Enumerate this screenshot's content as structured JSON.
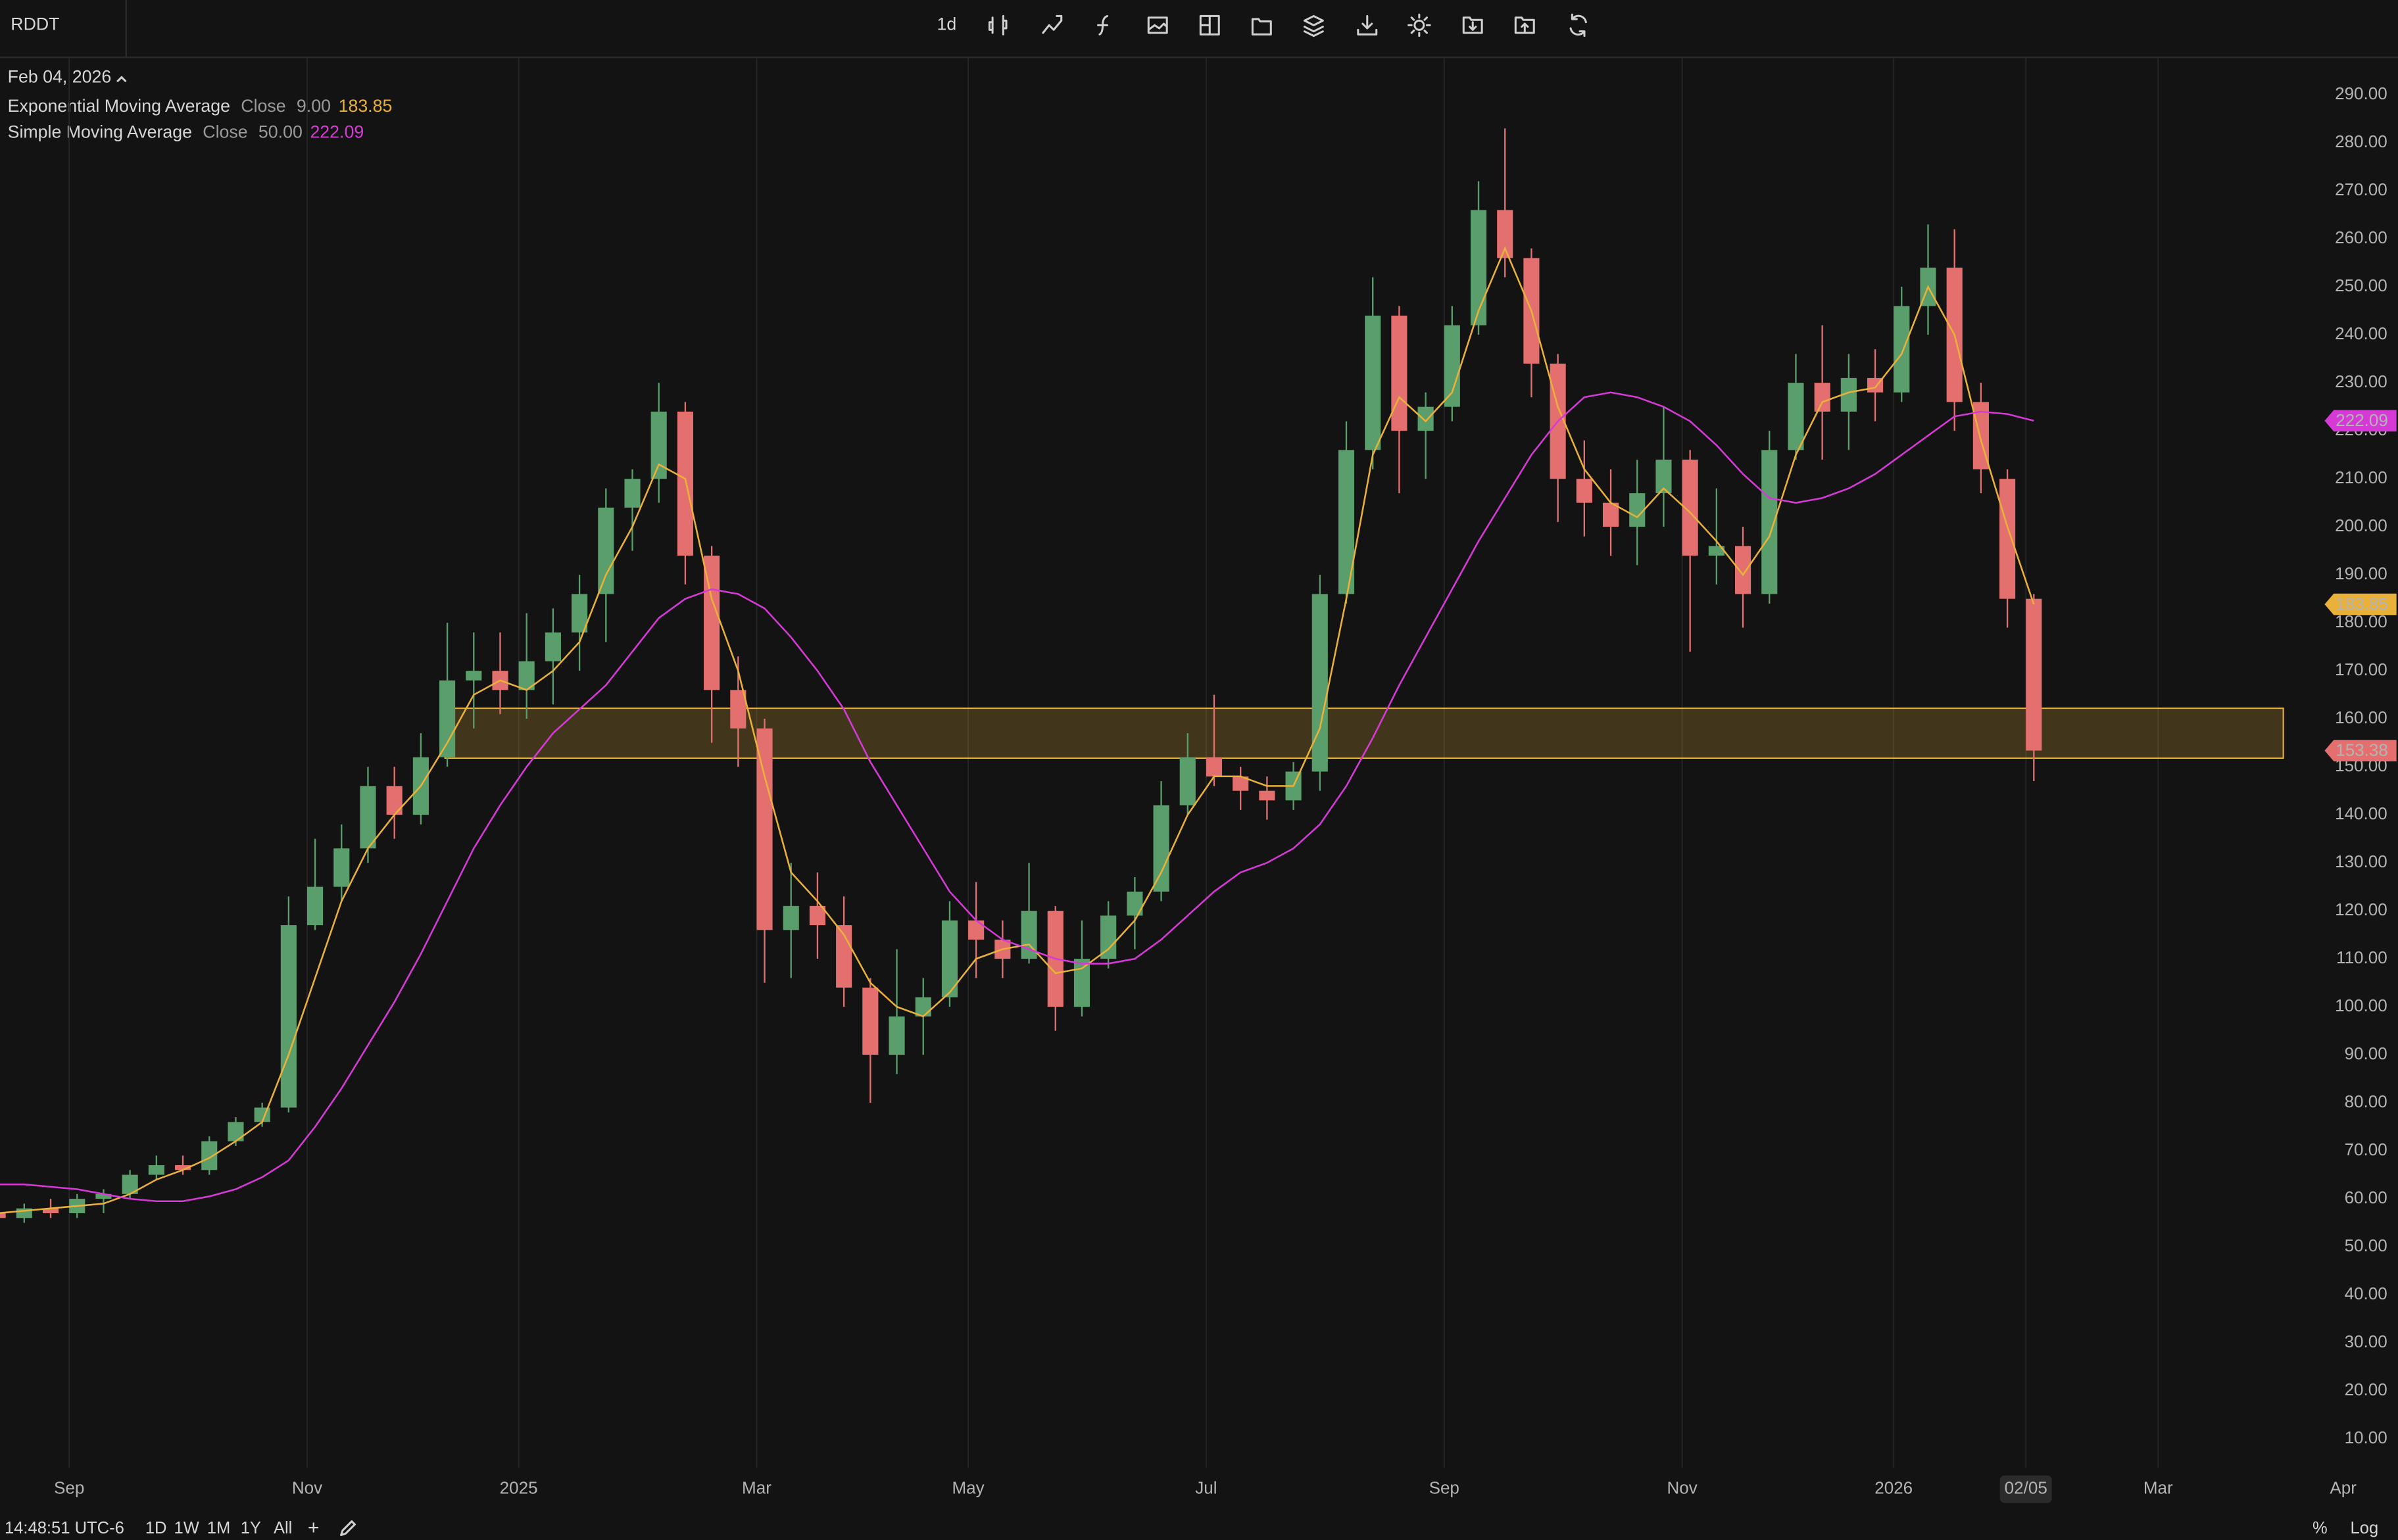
{
  "header": {
    "symbol": "RDDT",
    "interval": "1d",
    "date": "Feb 04, 2026"
  },
  "footer": {
    "time": "14:48:51 UTC-6",
    "ranges": [
      "1D",
      "1W",
      "1M",
      "1Y",
      "All"
    ],
    "plus": "+",
    "percent": "%",
    "log": "Log"
  },
  "chart_data": {
    "type": "candlestick",
    "categories": [
      null,
      null,
      null,
      "Sep",
      null,
      null,
      null,
      null,
      null,
      null,
      null,
      null,
      "Nov",
      null,
      null,
      null,
      null,
      null,
      null,
      null,
      "2025",
      null,
      null,
      null,
      null,
      null,
      null,
      null,
      null,
      "Mar",
      null,
      null,
      null,
      null,
      null,
      null,
      null,
      "May",
      null,
      null,
      null,
      null,
      null,
      null,
      null,
      null,
      "Jul",
      null,
      null,
      null,
      null,
      null,
      null,
      null,
      null,
      "Sep",
      null,
      null,
      null,
      null,
      null,
      null,
      null,
      null,
      "Nov",
      null,
      null,
      null,
      null,
      null,
      null,
      null,
      "2026",
      null,
      null,
      null,
      null,
      "02/05",
      null,
      null,
      null,
      null,
      "Mar",
      null,
      null,
      null,
      null,
      null,
      null,
      "Apr"
    ],
    "open": [
      57,
      56,
      58,
      57,
      60,
      61,
      65,
      67,
      66,
      72,
      76,
      79,
      117,
      125,
      133,
      146,
      140,
      152,
      168,
      170,
      166,
      172,
      178,
      186,
      204,
      210,
      224,
      194,
      166,
      158,
      116,
      121,
      117,
      104,
      90,
      98,
      102,
      118,
      114,
      110,
      120,
      100,
      110,
      119,
      124,
      142,
      152,
      148,
      145,
      143,
      149,
      186,
      216,
      244,
      220,
      225,
      242,
      266,
      256,
      234,
      210,
      205,
      200,
      207,
      214,
      194,
      196,
      186,
      216,
      230,
      224,
      231,
      228,
      246,
      254,
      226,
      210,
      185,
      null,
      null,
      null,
      null,
      null,
      null,
      null,
      null,
      null,
      null,
      null,
      null
    ],
    "high": [
      59,
      59,
      60,
      61,
      62,
      66,
      69,
      69,
      73,
      77,
      80,
      123,
      135,
      138,
      150,
      150,
      157,
      180,
      178,
      178,
      182,
      183,
      190,
      208,
      212,
      230,
      226,
      196,
      173,
      160,
      130,
      128,
      123,
      106,
      112,
      106,
      122,
      126,
      118,
      130,
      121,
      118,
      122,
      127,
      147,
      157,
      165,
      150,
      148,
      151,
      190,
      222,
      252,
      246,
      228,
      246,
      272,
      283,
      258,
      236,
      218,
      212,
      214,
      225,
      216,
      208,
      200,
      220,
      236,
      242,
      236,
      237,
      250,
      263,
      262,
      230,
      212,
      186,
      null,
      null,
      null,
      null,
      null,
      null,
      null,
      null,
      null,
      null,
      null,
      null
    ],
    "low": [
      54,
      55,
      56,
      56,
      57,
      60,
      64,
      65,
      65,
      71,
      75,
      78,
      116,
      122,
      130,
      135,
      138,
      150,
      158,
      161,
      160,
      163,
      170,
      176,
      195,
      205,
      188,
      155,
      150,
      105,
      106,
      110,
      100,
      80,
      86,
      90,
      100,
      106,
      106,
      109,
      95,
      98,
      108,
      112,
      122,
      140,
      146,
      141,
      139,
      141,
      145,
      184,
      212,
      207,
      210,
      222,
      240,
      252,
      227,
      201,
      198,
      194,
      192,
      200,
      174,
      188,
      179,
      184,
      214,
      214,
      216,
      222,
      226,
      240,
      220,
      207,
      179,
      147,
      null,
      null,
      null,
      null,
      null,
      null,
      null,
      null,
      null,
      null,
      null,
      null
    ],
    "close": [
      56,
      58,
      57,
      60,
      61,
      65,
      67,
      66,
      72,
      76,
      79,
      117,
      125,
      133,
      146,
      140,
      152,
      168,
      170,
      166,
      172,
      178,
      186,
      204,
      210,
      224,
      194,
      166,
      158,
      116,
      121,
      117,
      104,
      90,
      98,
      102,
      118,
      114,
      110,
      120,
      100,
      110,
      119,
      124,
      142,
      152,
      148,
      145,
      143,
      149,
      186,
      216,
      244,
      220,
      225,
      242,
      266,
      256,
      234,
      210,
      205,
      200,
      207,
      214,
      194,
      196,
      186,
      216,
      230,
      224,
      231,
      228,
      246,
      254,
      226,
      212,
      185,
      153.38,
      null,
      null,
      null,
      null,
      null,
      null,
      null,
      null,
      null,
      null,
      null,
      null
    ],
    "up_color": "#5a9e6b",
    "down_color": "#e3706e",
    "series": [
      {
        "name": "Exponential Moving Average",
        "source": "Close",
        "length": "9.00",
        "color": "#e9b13a",
        "values": [
          57,
          57.5,
          58,
          58.5,
          59,
          61,
          64,
          66,
          68.5,
          72,
          76,
          90,
          106,
          122,
          133,
          140,
          146,
          155,
          165,
          168,
          166,
          170,
          176,
          190,
          200,
          213,
          210,
          185,
          170,
          148,
          128,
          122,
          115,
          105,
          100,
          98,
          103,
          110,
          112,
          113,
          107,
          108,
          112,
          118,
          128,
          140,
          148,
          148,
          146,
          146,
          158,
          185,
          215,
          227,
          222,
          228,
          245,
          258,
          245,
          225,
          212,
          205,
          202,
          208,
          203,
          197,
          190,
          198,
          215,
          226,
          228,
          229,
          236,
          250,
          240,
          218,
          200,
          183.85,
          null,
          null,
          null,
          null,
          null,
          null,
          null,
          null,
          null,
          null,
          null,
          null
        ]
      },
      {
        "name": "Simple Moving Average",
        "source": "Close",
        "length": "50.00",
        "color": "#d63ad6",
        "values": [
          63,
          63,
          62.5,
          62,
          61,
          60,
          59.5,
          59.5,
          60.5,
          62,
          64.5,
          68,
          75,
          83,
          92,
          101,
          111,
          122,
          133,
          142,
          150,
          157,
          162,
          167,
          174,
          181,
          185,
          187,
          186,
          183,
          177,
          170,
          162,
          151,
          142,
          133,
          124,
          118,
          114,
          112,
          110,
          109,
          109,
          110,
          114,
          119,
          124,
          128,
          130,
          133,
          138,
          146,
          156,
          167,
          177,
          187,
          197,
          206,
          215,
          222,
          227,
          228,
          227,
          225,
          222,
          217,
          211,
          206,
          205,
          206,
          208,
          211,
          215,
          219,
          223,
          224,
          223.5,
          222.09,
          null,
          null,
          null,
          null,
          null,
          null,
          null,
          null,
          null,
          null,
          null,
          null
        ]
      }
    ],
    "zone": {
      "low": 151.8,
      "high": 162.2,
      "color": "#e9b13a"
    },
    "ylim": [
      3.95,
      297.65
    ],
    "yticks": [
      {
        "value": 10,
        "label": "10.00"
      },
      {
        "value": 20,
        "label": "20.00"
      },
      {
        "value": 30,
        "label": "30.00"
      },
      {
        "value": 40,
        "label": "40.00"
      },
      {
        "value": 50,
        "label": "50.00"
      },
      {
        "value": 60,
        "label": "60.00"
      },
      {
        "value": 70,
        "label": "70.00"
      },
      {
        "value": 80,
        "label": "80.00"
      },
      {
        "value": 90,
        "label": "90.00"
      },
      {
        "value": 100,
        "label": "100.00"
      },
      {
        "value": 110,
        "label": "110.00"
      },
      {
        "value": 120,
        "label": "120.00"
      },
      {
        "value": 130,
        "label": "130.00"
      },
      {
        "value": 140,
        "label": "140.00"
      },
      {
        "value": 150,
        "label": "150.00"
      },
      {
        "value": 160,
        "label": "160.00"
      },
      {
        "value": 170,
        "label": "170.00"
      },
      {
        "value": 180,
        "label": "180.00"
      },
      {
        "value": 190,
        "label": "190.00"
      },
      {
        "value": 200,
        "label": "200.00"
      },
      {
        "value": 210,
        "label": "210.00"
      },
      {
        "value": 220,
        "label": "220.00"
      },
      {
        "value": 230,
        "label": "230.00"
      },
      {
        "value": 240,
        "label": "240.00"
      },
      {
        "value": 250,
        "label": "250.00"
      },
      {
        "value": 260,
        "label": "260.00"
      },
      {
        "value": 270,
        "label": "270.00"
      },
      {
        "value": 280,
        "label": "280.00"
      },
      {
        "value": 290,
        "label": "290.00"
      }
    ],
    "ygrid": false,
    "xgrid": true
  }
}
